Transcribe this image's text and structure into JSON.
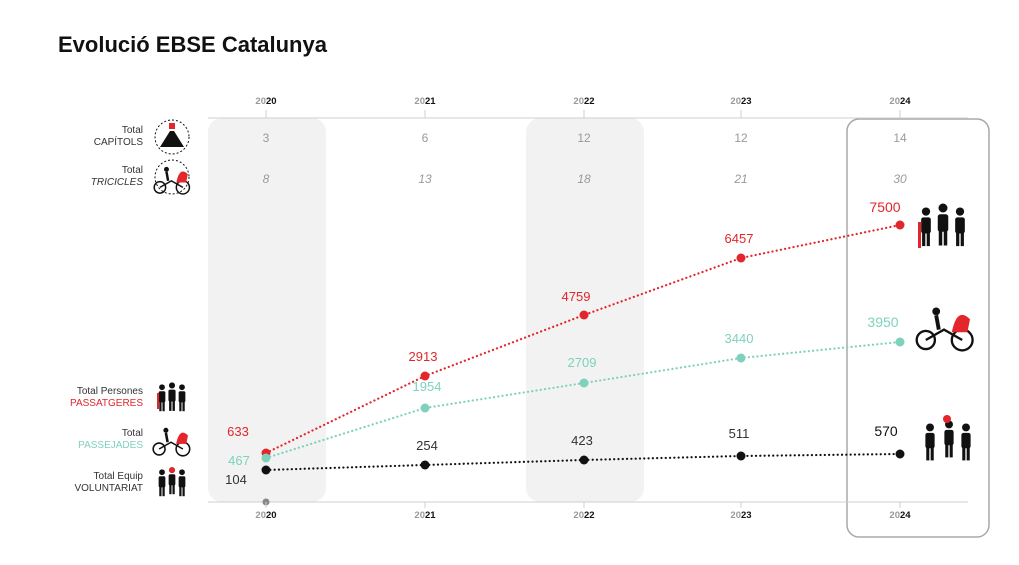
{
  "title": "Evolució EBSE Catalunya",
  "colors": {
    "passatgeres": "#e3262c",
    "passejades": "#7fd1bd",
    "voluntariat": "#111111",
    "band": "#f2f2f2",
    "highlight_border": "#a8a8a8",
    "muted_text": "#9a9a9a"
  },
  "row_labels": {
    "capitols": {
      "line1": "Total",
      "line2": "CAPÍTOLS",
      "icon": "hands-circle-icon"
    },
    "tricicles": {
      "line1": "Total",
      "line2": "TRICICLES",
      "icon": "tricycle-icon"
    },
    "passatgeres": {
      "line1": "Total Persones",
      "line2": "PASSATGERES",
      "icon": "people-group-icon"
    },
    "passejades": {
      "line1": "Total",
      "line2": "PASSEJADES",
      "icon": "tricycle-rider-icon"
    },
    "voluntariat": {
      "line1": "Total Equip",
      "line2": "VOLUNTARIAT",
      "icon": "volunteers-team-icon"
    }
  },
  "chart_data": {
    "type": "line",
    "title": "Evolució EBSE Catalunya",
    "x_ticks": [
      {
        "prefix": "20",
        "suffix": "20"
      },
      {
        "prefix": "20",
        "suffix": "21"
      },
      {
        "prefix": "20",
        "suffix": "22"
      },
      {
        "prefix": "20",
        "suffix": "23"
      },
      {
        "prefix": "20",
        "suffix": "24"
      }
    ],
    "x": [
      2020,
      2021,
      2022,
      2023,
      2024
    ],
    "capitols": [
      3,
      6,
      12,
      12,
      14
    ],
    "tricicles": [
      8,
      13,
      18,
      21,
      30
    ],
    "series": [
      {
        "key": "passatgeres",
        "values": [
          633,
          2913,
          4759,
          6457,
          7500
        ]
      },
      {
        "key": "passejades",
        "values": [
          467,
          1954,
          2709,
          3440,
          3950
        ]
      },
      {
        "key": "voluntariat",
        "values": [
          104,
          254,
          423,
          511,
          570
        ]
      }
    ],
    "ylim": [
      0,
      7500
    ],
    "line_style": "dotted",
    "shaded_years": [
      2020,
      2022
    ],
    "highlighted_year": 2024
  }
}
